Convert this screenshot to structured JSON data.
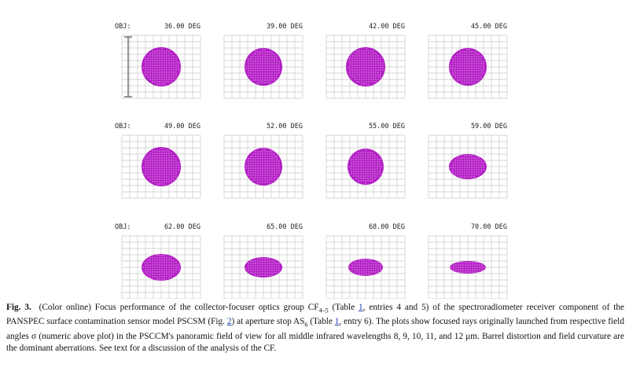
{
  "figure": {
    "obj_label": "OBJ:",
    "panels": [
      "36.00 DEG",
      "39.00 DEG",
      "42.00 DEG",
      "45.00 DEG",
      "49.00 DEG",
      "52.00 DEG",
      "55.00 DEG",
      "59.00 DEG",
      "62.00 DEG",
      "65.00 DEG",
      "68.00 DEG",
      "70.00 DEG"
    ]
  },
  "caption": [
    "Fig. 3.",
    "(Color online) Focus performance of the collector-focuser optics group CF",
    "4–5",
    " (Table ",
    "1",
    ", entries 4 and 5) of the spectroradiometer receiver component of the PANSPEC surface contamination sensor model PSCSM (Fig. ",
    "2",
    ") at aperture stop AS",
    "6",
    " (Table ",
    "1",
    ", entry 6). The plots show focused rays originally launched from respective field angles σ (numeric above plot) in the PSCCM's panoramic field of view for all middle infrared wavelengths 8, 9, 10, 11, and 12 μm. Barrel distortion and field curvature are the dominant aberrations. See text for a discussion of the analysis of the CF."
  ]
}
